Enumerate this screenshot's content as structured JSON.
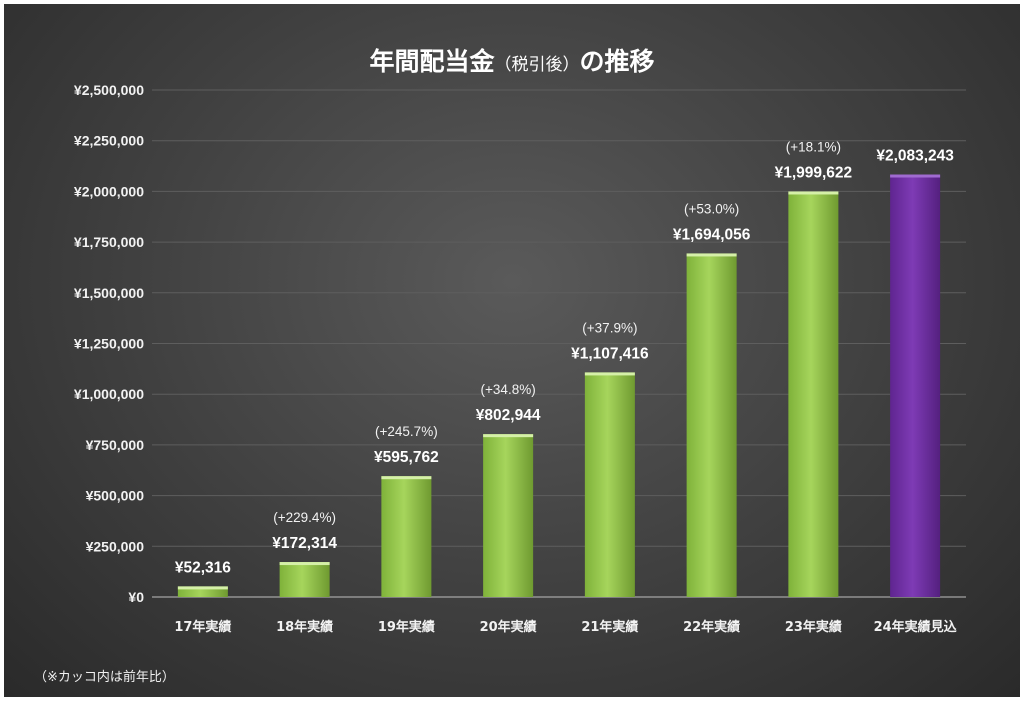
{
  "chart_data": {
    "type": "bar",
    "title_main": "年間配当金",
    "title_paren": "（税引後）",
    "title_tail": "の推移",
    "categories": [
      "17年実績",
      "18年実績",
      "19年実績",
      "20年実績",
      "21年実績",
      "22年実績",
      "23年実績",
      "24年実績見込"
    ],
    "values": [
      52316,
      172314,
      595762,
      802944,
      1107416,
      1694056,
      1999622,
      2083243
    ],
    "value_labels": [
      "¥52,316",
      "¥172,314",
      "¥595,762",
      "¥802,944",
      "¥1,107,416",
      "¥1,694,056",
      "¥1,999,622",
      "¥2,083,243"
    ],
    "growth_labels": [
      "",
      "(+229.4%)",
      "(+245.7%)",
      "(+34.8%)",
      "(+37.9%)",
      "(+53.0%)",
      "(+18.1%)",
      ""
    ],
    "y_ticks": [
      "¥0",
      "¥250,000",
      "¥500,000",
      "¥750,000",
      "¥1,000,000",
      "¥1,250,000",
      "¥1,500,000",
      "¥1,750,000",
      "¥2,000,000",
      "¥2,250,000",
      "¥2,500,000"
    ],
    "ylim": [
      0,
      2500000
    ],
    "grid": true,
    "legend": "none",
    "colors": {
      "actual_bar": "#92d050",
      "forecast_bar": "#7030a0",
      "forecast_label": "#b68de3",
      "background": "#404040"
    },
    "footnote": "（※カッコ内は前年比）"
  }
}
